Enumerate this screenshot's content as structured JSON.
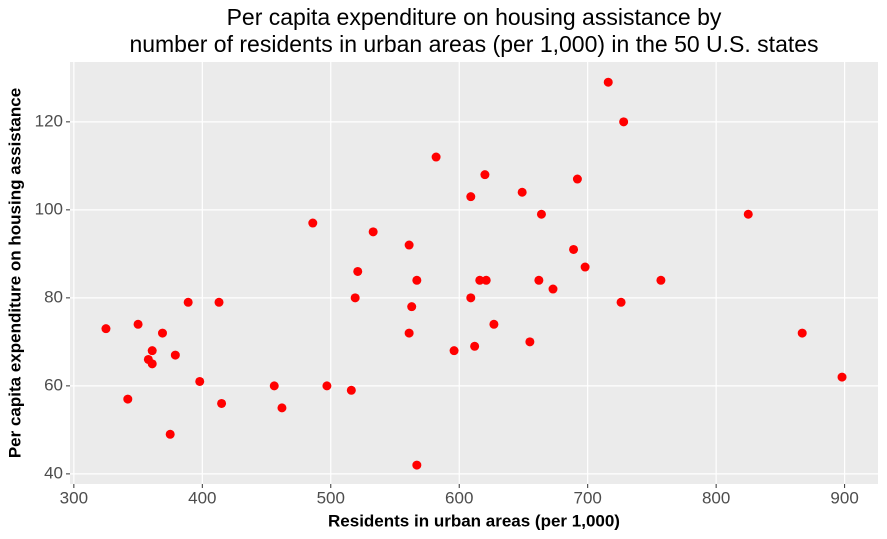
{
  "chart_data": {
    "type": "scatter",
    "title": [
      "Per capita expenditure on housing assistance by",
      "number of residents in urban areas (per 1,000) in the 50 U.S. states"
    ],
    "x_label": "Residents in urban areas (per 1,000)",
    "y_label": "Per capita expenditure on housing assistance",
    "color": "#ff0000",
    "grid": true,
    "x": [
      325,
      342,
      350,
      358,
      361,
      361,
      369,
      375,
      379,
      389,
      398,
      413,
      415,
      456,
      462,
      486,
      497,
      533,
      516,
      519,
      521,
      561,
      561,
      563,
      567,
      567,
      582,
      596,
      609,
      609,
      612,
      616,
      620,
      621,
      627,
      649,
      655,
      662,
      664,
      673,
      689,
      692,
      698,
      716,
      726,
      728,
      757,
      825,
      867,
      898
    ],
    "values": [
      73,
      57,
      74,
      66,
      65,
      68,
      72,
      49,
      67,
      79,
      61,
      79,
      56,
      60,
      55,
      97,
      60,
      95,
      59,
      80,
      86,
      92,
      72,
      78,
      84,
      42,
      112,
      68,
      103,
      80,
      69,
      84,
      108,
      84,
      74,
      104,
      70,
      84,
      99,
      82,
      91,
      107,
      87,
      129,
      79,
      120,
      84,
      99,
      72,
      62
    ],
    "xlim": [
      297,
      926
    ],
    "ylim": [
      37.7,
      133.6
    ],
    "xticks": [
      300,
      400,
      500,
      600,
      700,
      800,
      900
    ],
    "yticks": [
      40,
      60,
      80,
      100,
      120
    ]
  }
}
